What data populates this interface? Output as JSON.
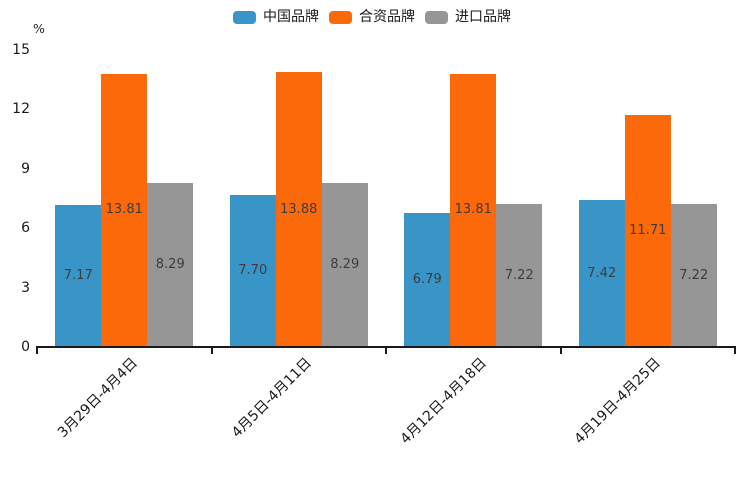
{
  "unit_label": "%",
  "colors": {
    "china_brand": "#3994C8",
    "joint_venture_brand": "#FC690A",
    "import_brand": "#969696",
    "axis": "#1a1a1a",
    "value_label": "#3d3d3d",
    "background": "#ffffff"
  },
  "legend": {
    "items": [
      {
        "label": "中国品牌",
        "color": "#3994C8"
      },
      {
        "label": "合资品牌",
        "color": "#FC690A"
      },
      {
        "label": "进口品牌",
        "color": "#969696"
      }
    ]
  },
  "chart_data": {
    "type": "bar",
    "title": "",
    "categories": [
      "3月29日-4月4日",
      "4月5日-4月11日",
      "4月12日-4月18日",
      "4月19日-4月25日"
    ],
    "series": [
      {
        "name": "中国品牌",
        "color": "#3994C8",
        "values": [
          7.17,
          7.7,
          6.79,
          7.42
        ]
      },
      {
        "name": "合资品牌",
        "color": "#FC690A",
        "values": [
          13.81,
          13.88,
          13.81,
          11.71
        ]
      },
      {
        "name": "进口品牌",
        "color": "#969696",
        "values": [
          8.29,
          8.29,
          7.22,
          7.22
        ]
      }
    ],
    "xlabel": "",
    "ylabel": "%",
    "ylim": [
      0,
      15
    ],
    "yticks": [
      0,
      3,
      6,
      9,
      12,
      15
    ],
    "grid": false,
    "legend_position": "top-center",
    "value_labels": "inside-center",
    "value_label_format": "2-decimals",
    "xtick_rotation": 45
  }
}
